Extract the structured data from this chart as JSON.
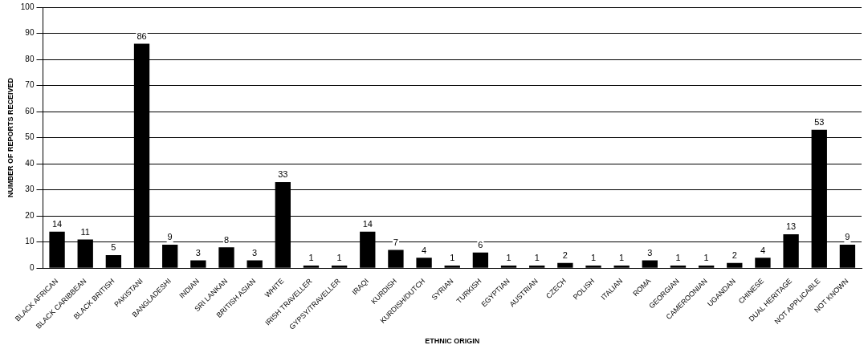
{
  "chart_data": {
    "type": "bar",
    "xlabel": "ETHNIC ORIGIN",
    "ylabel": "NUMBER OF REPORTS RECEIVED",
    "categories": [
      "BLACK AFRICAN",
      "BLACK CARIBBEAN",
      "BLACK BRITISH",
      "PAKISTANI",
      "BANGLADESHI",
      "INDIAN",
      "SRI LANKAN",
      "BRITISH ASIAN",
      "WHITE",
      "IRISH TRAVELLER",
      "GYPSY/TRAVELLER",
      "IRAQI",
      "KURDISH",
      "KURDISH/DUTCH",
      "SYRIAN",
      "TURKISH",
      "EGYPTIAN",
      "AUSTRIAN",
      "CZECH",
      "POLISH",
      "ITALIAN",
      "ROMA",
      "GEORGIAN",
      "CAMEROONIAN",
      "UGANDAN",
      "CHINESE",
      "DUAL HERITAGE",
      "NOT APPLICABLE",
      "NOT KNOWN"
    ],
    "values": [
      14,
      11,
      5,
      86,
      9,
      3,
      8,
      3,
      33,
      1,
      1,
      14,
      7,
      4,
      1,
      6,
      1,
      1,
      2,
      1,
      1,
      3,
      1,
      1,
      2,
      4,
      13,
      53,
      9
    ],
    "color": "#000000",
    "ylim": [
      0,
      100
    ],
    "yticks": [
      0,
      10,
      20,
      30,
      40,
      50,
      60,
      70,
      80,
      90,
      100
    ],
    "grid": "y",
    "data_labels": true,
    "legend": false
  }
}
